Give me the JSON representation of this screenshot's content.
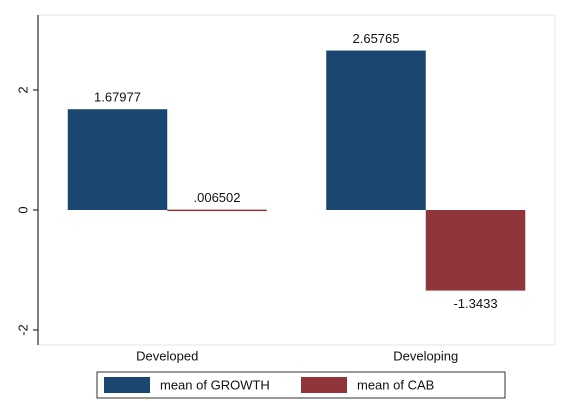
{
  "chart_data": {
    "type": "bar",
    "categories": [
      "Developed",
      "Developing"
    ],
    "series": [
      {
        "name": "mean of GROWTH",
        "color": "#1a476f",
        "values": [
          1.67977,
          2.65765
        ]
      },
      {
        "name": "mean of CAB",
        "color": "#90353b",
        "values": [
          0.006502,
          -1.3433
        ],
        "value_labels": [
          ".006502",
          "-1.3433"
        ]
      }
    ],
    "ylim": [
      -2.25,
      3.25
    ],
    "yticks": [
      -2,
      0,
      2
    ],
    "legend": "bottom"
  }
}
